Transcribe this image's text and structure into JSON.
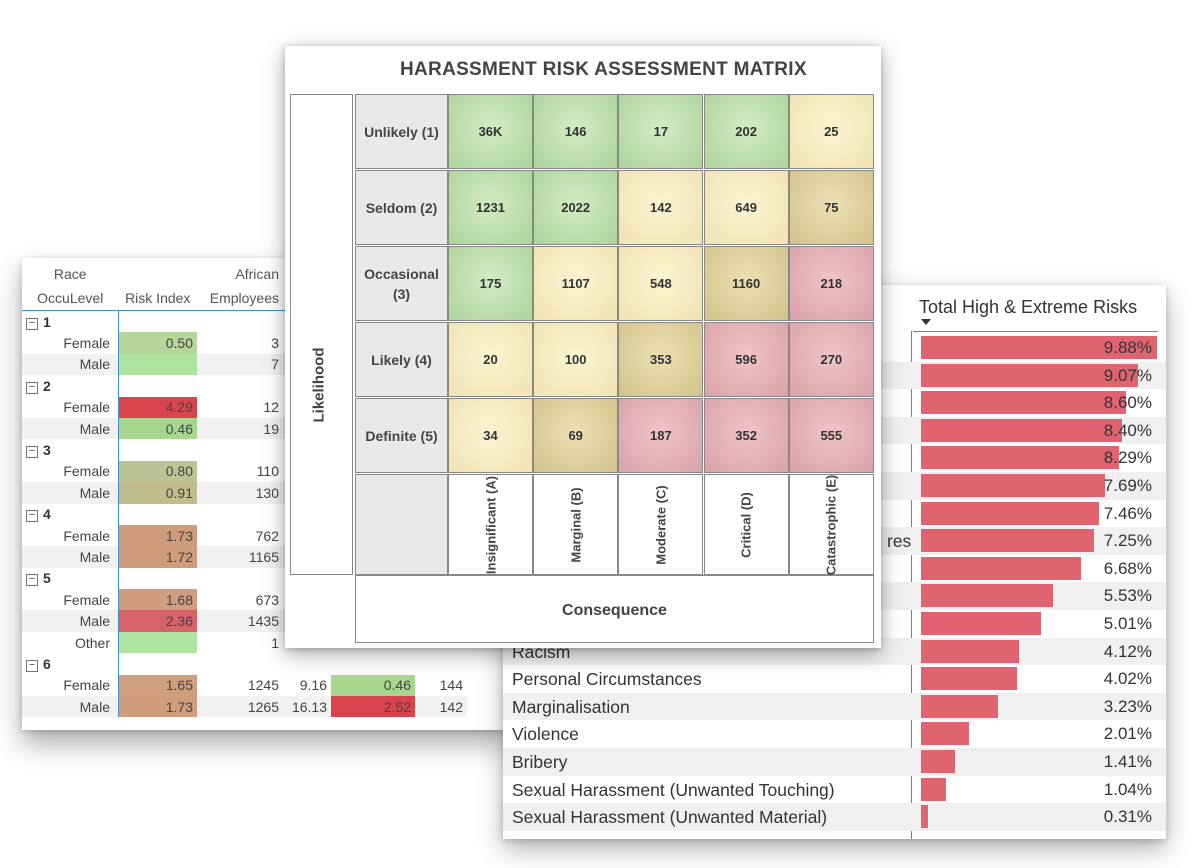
{
  "left_table": {
    "header": {
      "race_label": "Race",
      "occulevel_label": "OccuLevel",
      "risk_index_label": "Risk Index",
      "african_label": "African",
      "employees_label": "Employees"
    },
    "groups": [
      {
        "label": "1",
        "rows": [
          {
            "label": "Female",
            "risk": "0.50",
            "risk_color": "#b5d59a",
            "employees": "3",
            "pct": "",
            "v2": "",
            "v2_color": "",
            "n2": ""
          },
          {
            "label": "Male",
            "risk": "",
            "risk_color": "#aee3a0",
            "employees": "7",
            "pct": "",
            "v2": "",
            "v2_color": "",
            "n2": ""
          }
        ]
      },
      {
        "label": "2",
        "rows": [
          {
            "label": "Female",
            "risk": "4.29",
            "risk_color": "#d9434e",
            "employees": "12",
            "pct": "",
            "v2": "",
            "v2_color": "",
            "n2": ""
          },
          {
            "label": "Male",
            "risk": "0.46",
            "risk_color": "#a9d68f",
            "employees": "19",
            "pct": "",
            "v2": "",
            "v2_color": "",
            "n2": ""
          }
        ]
      },
      {
        "label": "3",
        "rows": [
          {
            "label": "Female",
            "risk": "0.80",
            "risk_color": "#bcc493",
            "employees": "110",
            "pct": "",
            "v2": "",
            "v2_color": "",
            "n2": ""
          },
          {
            "label": "Male",
            "risk": "0.91",
            "risk_color": "#c0bd8c",
            "employees": "130",
            "pct": "",
            "v2": "",
            "v2_color": "",
            "n2": ""
          }
        ]
      },
      {
        "label": "4",
        "rows": [
          {
            "label": "Female",
            "risk": "1.73",
            "risk_color": "#cf9c7c",
            "employees": "762",
            "pct": "",
            "v2": "",
            "v2_color": "",
            "n2": ""
          },
          {
            "label": "Male",
            "risk": "1.72",
            "risk_color": "#cf9c7c",
            "employees": "1165",
            "pct": "",
            "v2": "",
            "v2_color": "",
            "n2": ""
          }
        ]
      },
      {
        "label": "5",
        "rows": [
          {
            "label": "Female",
            "risk": "1.68",
            "risk_color": "#cf9e7e",
            "employees": "673",
            "pct": "",
            "v2": "",
            "v2_color": "",
            "n2": ""
          },
          {
            "label": "Male",
            "risk": "2.36",
            "risk_color": "#d7626a",
            "employees": "1435",
            "pct": "",
            "v2": "",
            "v2_color": "",
            "n2": ""
          },
          {
            "label": "Other",
            "risk": "",
            "risk_color": "#aee3a0",
            "employees": "1",
            "pct": "",
            "v2": "",
            "v2_color": "",
            "n2": ""
          }
        ]
      },
      {
        "label": "6",
        "rows": [
          {
            "label": "Female",
            "risk": "1.65",
            "risk_color": "#cf9f80",
            "employees": "1245",
            "pct": "9.16",
            "v2": "0.46",
            "v2_color": "#a9d68f",
            "n2": "144"
          },
          {
            "label": "Male",
            "risk": "1.73",
            "risk_color": "#cf9c7c",
            "employees": "1265",
            "pct": "16.13",
            "v2": "2.52",
            "v2_color": "#d9434e",
            "n2": "142"
          }
        ]
      }
    ]
  },
  "matrix": {
    "title": "HARASSMENT RISK ASSESSMENT MATRIX",
    "likelihood_label": "Likelihood",
    "consequence_label": "Consequence",
    "rows": [
      {
        "label": "Unlikely (1)",
        "cells": [
          {
            "value": "36K",
            "level": "green"
          },
          {
            "value": "146",
            "level": "green"
          },
          {
            "value": "17",
            "level": "green"
          },
          {
            "value": "202",
            "level": "green"
          },
          {
            "value": "25",
            "level": "yellow"
          }
        ]
      },
      {
        "label": "Seldom (2)",
        "cells": [
          {
            "value": "1231",
            "level": "green"
          },
          {
            "value": "2022",
            "level": "green"
          },
          {
            "value": "142",
            "level": "yellow"
          },
          {
            "value": "649",
            "level": "yellow"
          },
          {
            "value": "75",
            "level": "tan"
          }
        ]
      },
      {
        "label": "Occasional (3)",
        "cells": [
          {
            "value": "175",
            "level": "green"
          },
          {
            "value": "1107",
            "level": "yellow"
          },
          {
            "value": "548",
            "level": "yellow"
          },
          {
            "value": "1160",
            "level": "tan"
          },
          {
            "value": "218",
            "level": "pink"
          }
        ]
      },
      {
        "label": "Likely (4)",
        "cells": [
          {
            "value": "20",
            "level": "yellow"
          },
          {
            "value": "100",
            "level": "yellow"
          },
          {
            "value": "353",
            "level": "tan"
          },
          {
            "value": "596",
            "level": "pink"
          },
          {
            "value": "270",
            "level": "pink"
          }
        ]
      },
      {
        "label": "Definite (5)",
        "cells": [
          {
            "value": "34",
            "level": "yellow"
          },
          {
            "value": "69",
            "level": "tan"
          },
          {
            "value": "187",
            "level": "pink"
          },
          {
            "value": "352",
            "level": "pink"
          },
          {
            "value": "555",
            "level": "pink"
          }
        ]
      }
    ],
    "columns": [
      "Insignificant (A)",
      "Marginal (B)",
      "Moderate (C)",
      "Critical (D)",
      "Catastrophic (E)"
    ],
    "colors": {
      "green": "#b8dca6",
      "yellow": "#f6ebc3",
      "tan": "#ddd09e",
      "pink": "#e3b2b7"
    }
  },
  "bar_chart": {
    "header": "Total High & Extreme Risks",
    "bar_color": "#e06470",
    "max_value": 9.88,
    "rows": [
      {
        "label": "",
        "value": 9.88,
        "display": "9.88%"
      },
      {
        "label": "",
        "value": 9.07,
        "display": "9.07%"
      },
      {
        "label": "",
        "value": 8.6,
        "display": "8.60%"
      },
      {
        "label": "",
        "value": 8.4,
        "display": "8.40%"
      },
      {
        "label": "",
        "value": 8.29,
        "display": "8.29%"
      },
      {
        "label": "",
        "value": 7.69,
        "display": "7.69%"
      },
      {
        "label": "",
        "value": 7.46,
        "display": "7.46%"
      },
      {
        "label": "res",
        "value": 7.25,
        "display": "7.25%"
      },
      {
        "label": "",
        "value": 6.68,
        "display": "6.68%"
      },
      {
        "label": "",
        "value": 5.53,
        "display": "5.53%"
      },
      {
        "label": "",
        "value": 5.01,
        "display": "5.01%"
      },
      {
        "label": "Racism",
        "value": 4.12,
        "display": "4.12%"
      },
      {
        "label": "Personal Circumstances",
        "value": 4.02,
        "display": "4.02%"
      },
      {
        "label": "Marginalisation",
        "value": 3.23,
        "display": "3.23%"
      },
      {
        "label": "Violence",
        "value": 2.01,
        "display": "2.01%"
      },
      {
        "label": "Bribery",
        "value": 1.41,
        "display": "1.41%"
      },
      {
        "label": "Sexual Harassment (Unwanted Touching)",
        "value": 1.04,
        "display": "1.04%"
      },
      {
        "label": "Sexual Harassment (Unwanted Material)",
        "value": 0.31,
        "display": "0.31%"
      }
    ]
  }
}
